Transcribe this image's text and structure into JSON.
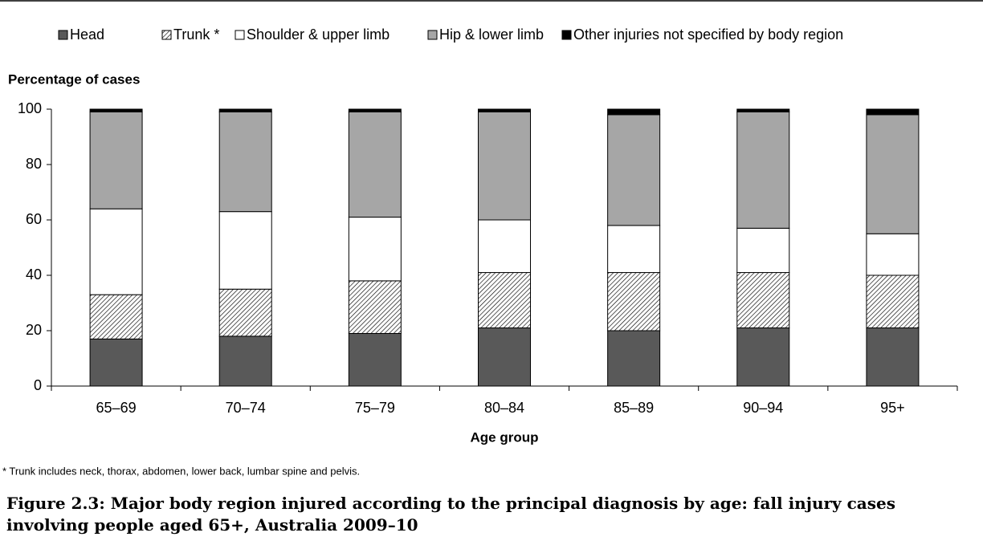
{
  "chart_data": {
    "type": "stacked-bar",
    "y_label": "Percentage of cases",
    "x_label": "Age group",
    "categories": [
      "65–69",
      "70–74",
      "75–79",
      "80–84",
      "85–89",
      "90–94",
      "95+"
    ],
    "series": [
      {
        "name": "Head",
        "color": "#595959",
        "values": [
          17,
          18,
          19,
          21,
          20,
          21,
          21
        ]
      },
      {
        "name": "Trunk *",
        "color": "#000000",
        "pattern": "hatch",
        "values": [
          16,
          17,
          19,
          20,
          21,
          20,
          19
        ]
      },
      {
        "name": "Shoulder & upper limb",
        "color": "#ffffff",
        "values": [
          31,
          28,
          23,
          19,
          17,
          16,
          15
        ]
      },
      {
        "name": "Hip & lower limb",
        "color": "#a6a6a6",
        "values": [
          35,
          36,
          38,
          39,
          40,
          42,
          43
        ]
      },
      {
        "name": "Other injuries not specified by body region",
        "color": "#000000",
        "values": [
          1,
          1,
          1,
          1,
          2,
          1,
          2
        ]
      }
    ],
    "ylim": [
      0,
      100
    ],
    "yticks": [
      0,
      20,
      40,
      60,
      80,
      100
    ],
    "note": "* Trunk includes neck, thorax, abdomen, lower back, lumbar spine and pelvis.",
    "caption": "Figure 2.3: Major body region injured according to the principal diagnosis by age: fall injury cases involving people aged 65+, Australia 2009–10"
  }
}
